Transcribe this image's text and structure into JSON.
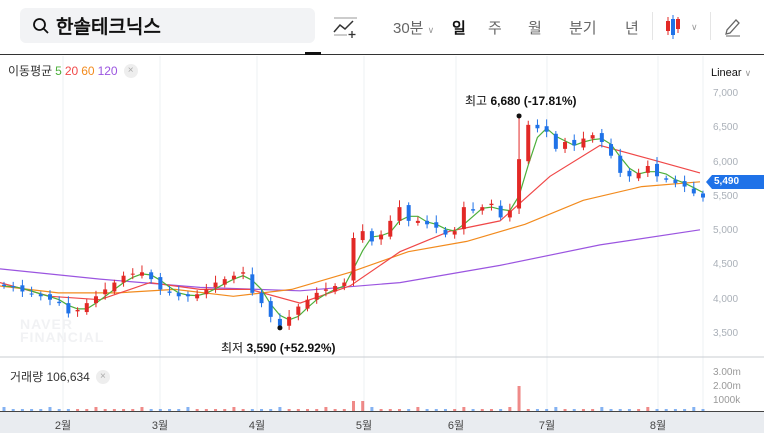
{
  "header": {
    "stock_name": "한솔테크닉스",
    "interval": "30분",
    "tabs": [
      "일",
      "주",
      "월",
      "분기",
      "년"
    ],
    "active_tab": "일"
  },
  "legend": {
    "label": "이동평균",
    "ma": [
      {
        "period": "5",
        "color": "#4caf3a"
      },
      {
        "period": "20",
        "color": "#f04848"
      },
      {
        "period": "60",
        "color": "#f28b1e"
      },
      {
        "period": "120",
        "color": "#9b55e0"
      }
    ],
    "close": "×"
  },
  "scale_mode": "Linear",
  "annotations": {
    "high": "최고 6,680 (-17.81%)",
    "high_label": "최고",
    "high_value": "6,680 (-17.81%)",
    "low_label": "최저",
    "low_value": "3,590 (+52.92%)"
  },
  "volume": {
    "label": "거래량",
    "value": "106,634",
    "axis": [
      "3.00m",
      "2.00m",
      "1000k"
    ]
  },
  "watermark": "NAVER FINANCIAL",
  "colors": {
    "up": "#e22926",
    "down": "#1f72e8",
    "price_tag": "#1f72e8"
  },
  "chart_data": {
    "type": "candlestick",
    "current_price": "5,490",
    "y_ticks": [
      "7,000",
      "6,500",
      "6,000",
      "5,500",
      "5,000",
      "4,500",
      "4,000",
      "3,500"
    ],
    "ylim": [
      3500,
      7000
    ],
    "x_ticks": [
      "2월",
      "3월",
      "4월",
      "5월",
      "6월",
      "7월",
      "8월"
    ],
    "closes": [
      4200,
      4180,
      4120,
      4080,
      4050,
      4000,
      3950,
      3800,
      3850,
      3950,
      4050,
      4150,
      4250,
      4350,
      4380,
      4400,
      4300,
      4150,
      4100,
      4050,
      4050,
      4080,
      4150,
      4250,
      4300,
      4350,
      4400,
      4100,
      3950,
      3750,
      3620,
      3750,
      3900,
      4000,
      4100,
      4150,
      4200,
      4250,
      4900,
      5000,
      4850,
      4950,
      5150,
      5350,
      5150,
      5150,
      5100,
      5050,
      4950,
      5000,
      5350,
      5300,
      5350,
      5400,
      5200,
      5300,
      6050,
      6550,
      6500,
      6450,
      6200,
      6300,
      6250,
      6350,
      6400,
      6300,
      6100,
      5850,
      5800,
      5850,
      5950,
      5800,
      5750,
      5700,
      5650,
      5550,
      5490
    ],
    "high": 6680,
    "low": 3590,
    "ma20": [
      4250,
      4050,
      4000,
      4250,
      4150,
      4150,
      3950,
      4200,
      4700,
      5000,
      5150,
      5800,
      6250,
      6050,
      5850
    ],
    "ma60": [
      4200,
      4100,
      4100,
      4150,
      4050,
      4150,
      4400,
      4700,
      4850,
      5100,
      5450,
      5650,
      5720
    ],
    "ma120": [
      4450,
      4300,
      4180,
      4130,
      4250,
      4500,
      4800,
      5020
    ]
  }
}
